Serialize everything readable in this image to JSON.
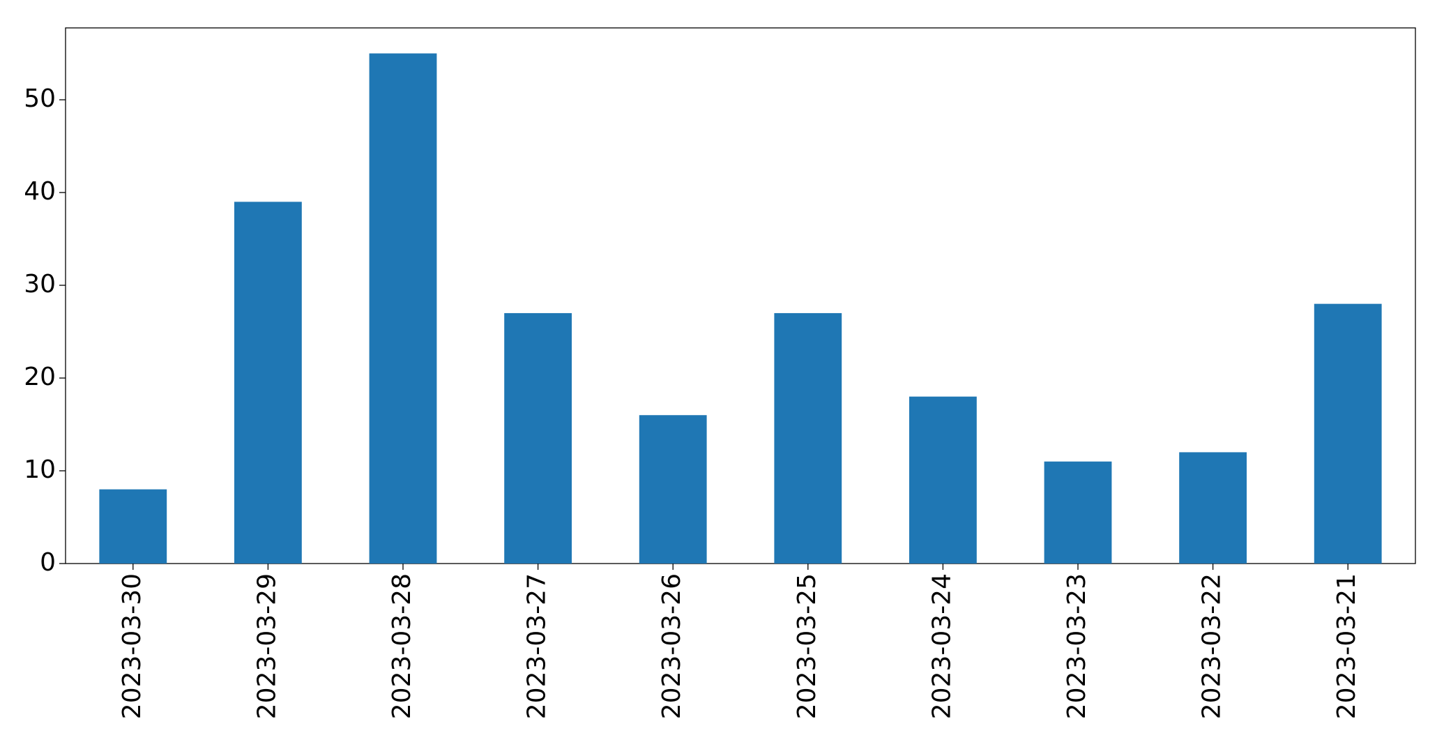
{
  "chart_data": {
    "type": "bar",
    "categories": [
      "2023-03-30",
      "2023-03-29",
      "2023-03-28",
      "2023-03-27",
      "2023-03-26",
      "2023-03-25",
      "2023-03-24",
      "2023-03-23",
      "2023-03-22",
      "2023-03-21"
    ],
    "values": [
      8,
      39,
      55,
      27,
      16,
      27,
      18,
      11,
      12,
      28
    ],
    "color": "#1f77b4",
    "ylim": [
      0,
      57.75
    ],
    "yticks": [
      0,
      10,
      20,
      30,
      40,
      50
    ],
    "grid": false
  }
}
